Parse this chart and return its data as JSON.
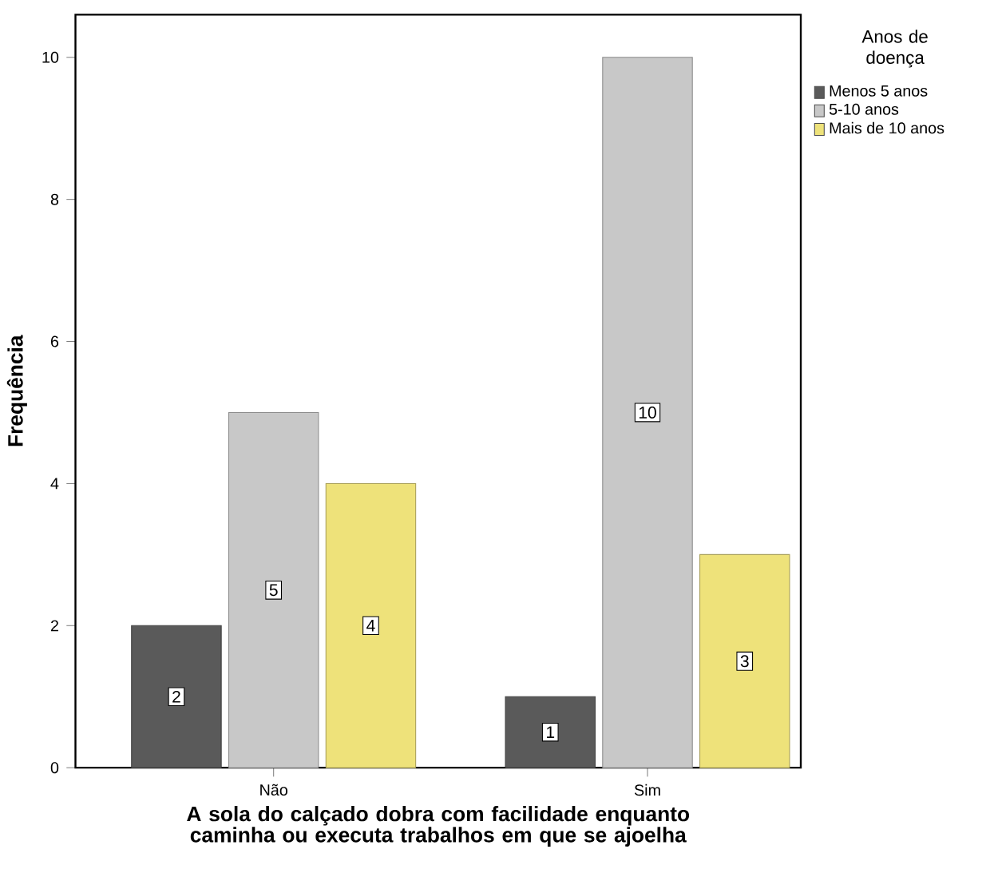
{
  "chart_data": {
    "type": "bar",
    "xlabel": "A sola do calçado dobra com facilidade enquanto caminha ou executa trabalhos em que se ajoelha",
    "ylabel": "Frequência",
    "legend_title": "Anos de doença",
    "categories": [
      "Não",
      "Sim"
    ],
    "series": [
      {
        "name": "Menos 5 anos",
        "color": "#5a5a5a",
        "values": [
          2,
          1
        ]
      },
      {
        "name": "5-10 anos",
        "color": "#c8c8c8",
        "values": [
          5,
          10
        ]
      },
      {
        "name": "Mais de 10 anos",
        "color": "#eee27a",
        "values": [
          4,
          3
        ]
      }
    ],
    "ylim": [
      0,
      10.6
    ],
    "yticks": [
      0,
      2,
      4,
      6,
      8,
      10
    ],
    "data_labels": true,
    "legend": "top right",
    "grid": false
  }
}
